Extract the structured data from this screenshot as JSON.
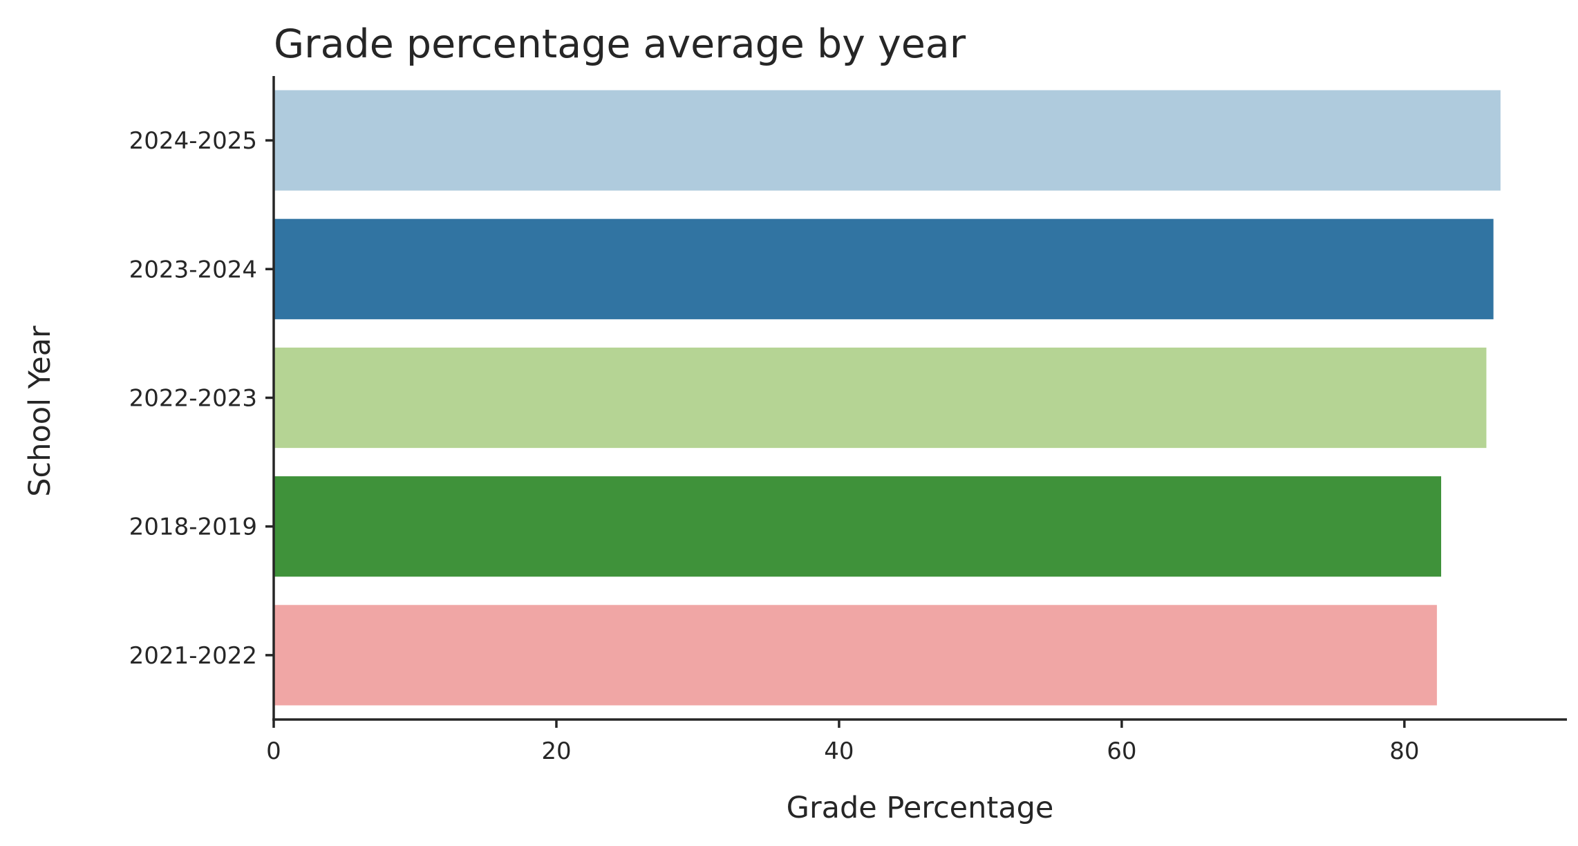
{
  "chart_data": {
    "type": "bar",
    "orientation": "horizontal",
    "title": "Grade percentage average by year",
    "xlabel": "Grade Percentage",
    "ylabel": "School Year",
    "categories": [
      "2024-2025",
      "2023-2024",
      "2022-2023",
      "2018-2019",
      "2021-2022"
    ],
    "values": [
      86.8,
      86.3,
      85.8,
      82.6,
      82.3
    ],
    "colors": [
      "#afcbdd",
      "#3174a2",
      "#b5d494",
      "#3f923a",
      "#f0a6a5"
    ],
    "xlim": [
      0,
      91.5
    ],
    "xticks": [
      0,
      20,
      40,
      60,
      80
    ],
    "grid": false,
    "legend": "none"
  }
}
